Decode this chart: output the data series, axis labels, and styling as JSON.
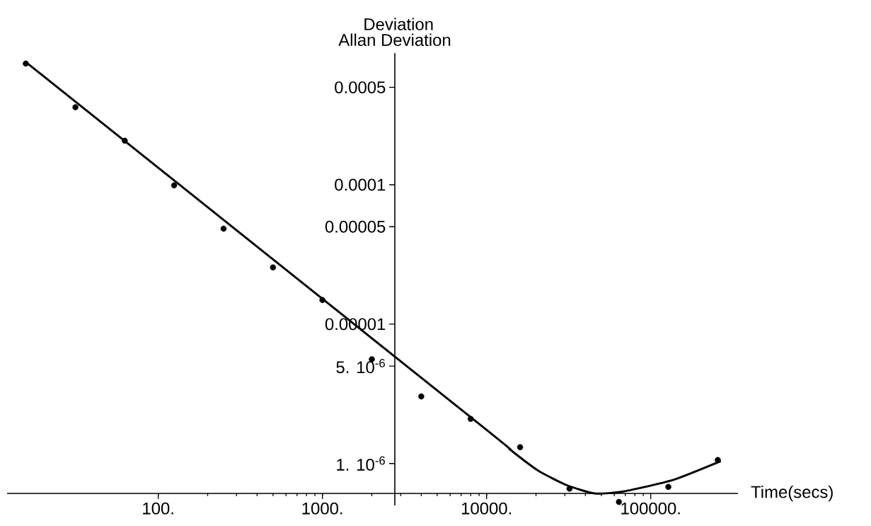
{
  "chart_data": {
    "type": "scatter",
    "ylabel": "Allan Deviation",
    "xlabel": "Time(secs)",
    "annotations": [
      "Deviation"
    ],
    "log": "xy",
    "grid": false,
    "xlim": [
      12,
      340000
    ],
    "ylim": [
      5e-07,
      0.00088
    ],
    "xticks": [
      {
        "value": 100,
        "label": "100."
      },
      {
        "value": 1000,
        "label": "1000."
      },
      {
        "value": 10000,
        "label": "10000."
      },
      {
        "value": 100000,
        "label": "100000."
      }
    ],
    "yticks": [
      {
        "value": 0.0005,
        "label": "0.0005"
      },
      {
        "value": 0.0001,
        "label": "0.0001"
      },
      {
        "value": 5e-05,
        "label": "0.00005"
      },
      {
        "value": 1e-05,
        "label": "0.00001"
      },
      {
        "value": 5e-06,
        "label": "5. 10$^{-6}$"
      },
      {
        "value": 1e-06,
        "label": "1. 10$^{-6}$"
      }
    ],
    "series": [
      {
        "color": "#000000",
        "marker": "circle",
        "x": [
          15.6,
          31.3,
          62.5,
          125,
          250,
          500,
          1000,
          2000,
          4000,
          8000,
          16000,
          32000,
          64000,
          128000,
          256000
        ],
        "values": [
          0.00074,
          0.00036,
          0.000207,
          9.9e-05,
          4.84e-05,
          2.55e-05,
          1.49e-05,
          5.6e-06,
          3.03e-06,
          2.09e-06,
          1.31e-06,
          6.6e-07,
          5.3e-07,
          6.8e-07,
          1.06e-06
        ]
      },
      {
        "type": "line",
        "color": "#000000",
        "marker": "none",
        "x": [
          15.6,
          9330,
          13900,
          20600,
          30700,
          45600,
          67900,
          136000,
          267000
        ],
        "values": [
          0.00076,
          1.86e-06,
          1.26e-06,
          8.9e-07,
          7e-07,
          6.1e-07,
          6.3e-07,
          7.6e-07,
          1.04e-06
        ]
      }
    ]
  }
}
